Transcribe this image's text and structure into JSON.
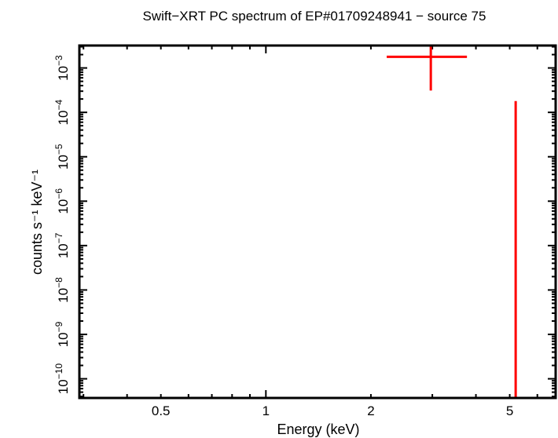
{
  "chart_data": {
    "type": "scatter",
    "title": "Swift−XRT PC spectrum of EP#01709248941 − source 75",
    "xlabel": "Energy (keV)",
    "ylabel": "counts s⁻¹ keV⁻¹",
    "xscale": "log",
    "yscale": "log",
    "xlim": [
      0.292,
      6.77
    ],
    "ylim": [
      3.7e-11,
      0.0032
    ],
    "grid": false,
    "x_ticks": [
      {
        "value": 0.5,
        "label": "0.5"
      },
      {
        "value": 1,
        "label": "1"
      },
      {
        "value": 2,
        "label": "2"
      },
      {
        "value": 5,
        "label": "5"
      }
    ],
    "y_ticks": [
      {
        "exp": -3,
        "base": "10",
        "sup": "−3"
      },
      {
        "exp": -4,
        "base": "10",
        "sup": "−4"
      },
      {
        "exp": -5,
        "base": "10",
        "sup": "−5"
      },
      {
        "exp": -6,
        "base": "10",
        "sup": "−6"
      },
      {
        "exp": -7,
        "base": "10",
        "sup": "−7"
      },
      {
        "exp": -8,
        "base": "10",
        "sup": "−8"
      },
      {
        "exp": -9,
        "base": "10",
        "sup": "−9"
      },
      {
        "exp": -10,
        "base": "10",
        "sup": "−10"
      }
    ],
    "series": [
      {
        "color": "#ff0000",
        "points": [
          {
            "x": 2.97,
            "xlo": 2.22,
            "xhi": 3.77,
            "y": 0.00178,
            "ylo": 0.00031,
            "yhi": 0.0032
          },
          {
            "x": 5.2,
            "xlo": 5.2,
            "xhi": 5.2,
            "y": 3.7e-11,
            "ylo": 3.7e-11,
            "yhi": 0.00018
          }
        ]
      }
    ]
  }
}
